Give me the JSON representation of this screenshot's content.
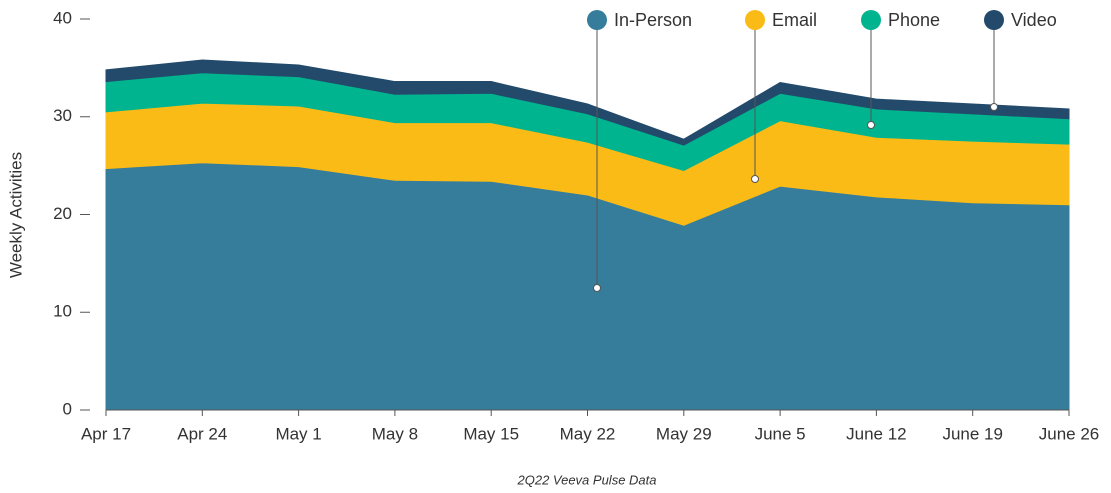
{
  "chart_data": {
    "type": "stacked_area",
    "y_label": "Weekly Activities",
    "caption": "2Q22 Veeva Pulse Data",
    "categories": [
      "Apr 17",
      "Apr 24",
      "May 1",
      "May 8",
      "May 15",
      "May 22",
      "May 29",
      "June 5",
      "June 12",
      "June 19",
      "June 26"
    ],
    "series": [
      {
        "name": "In-Person",
        "color": "#357d9b",
        "values": [
          24.7,
          25.3,
          24.9,
          23.5,
          23.4,
          22.0,
          18.9,
          22.9,
          21.8,
          21.2,
          21.0
        ]
      },
      {
        "name": "Email",
        "color": "#fbbb16",
        "values": [
          5.8,
          6.1,
          6.2,
          5.9,
          6.0,
          5.4,
          5.6,
          6.7,
          6.1,
          6.3,
          6.2
        ]
      },
      {
        "name": "Phone",
        "color": "#00b48f",
        "values": [
          3.1,
          3.1,
          3.0,
          2.9,
          3.0,
          2.9,
          2.6,
          2.8,
          2.9,
          2.8,
          2.6
        ]
      },
      {
        "name": "Video",
        "color": "#234a6b",
        "values": [
          1.2,
          1.3,
          1.2,
          1.3,
          1.2,
          1.0,
          0.6,
          1.1,
          1.0,
          1.0,
          1.0
        ]
      }
    ],
    "ylim": [
      0,
      40
    ],
    "yticks": [
      0,
      10,
      20,
      30,
      40
    ],
    "grid": false,
    "legend": "top-right"
  }
}
